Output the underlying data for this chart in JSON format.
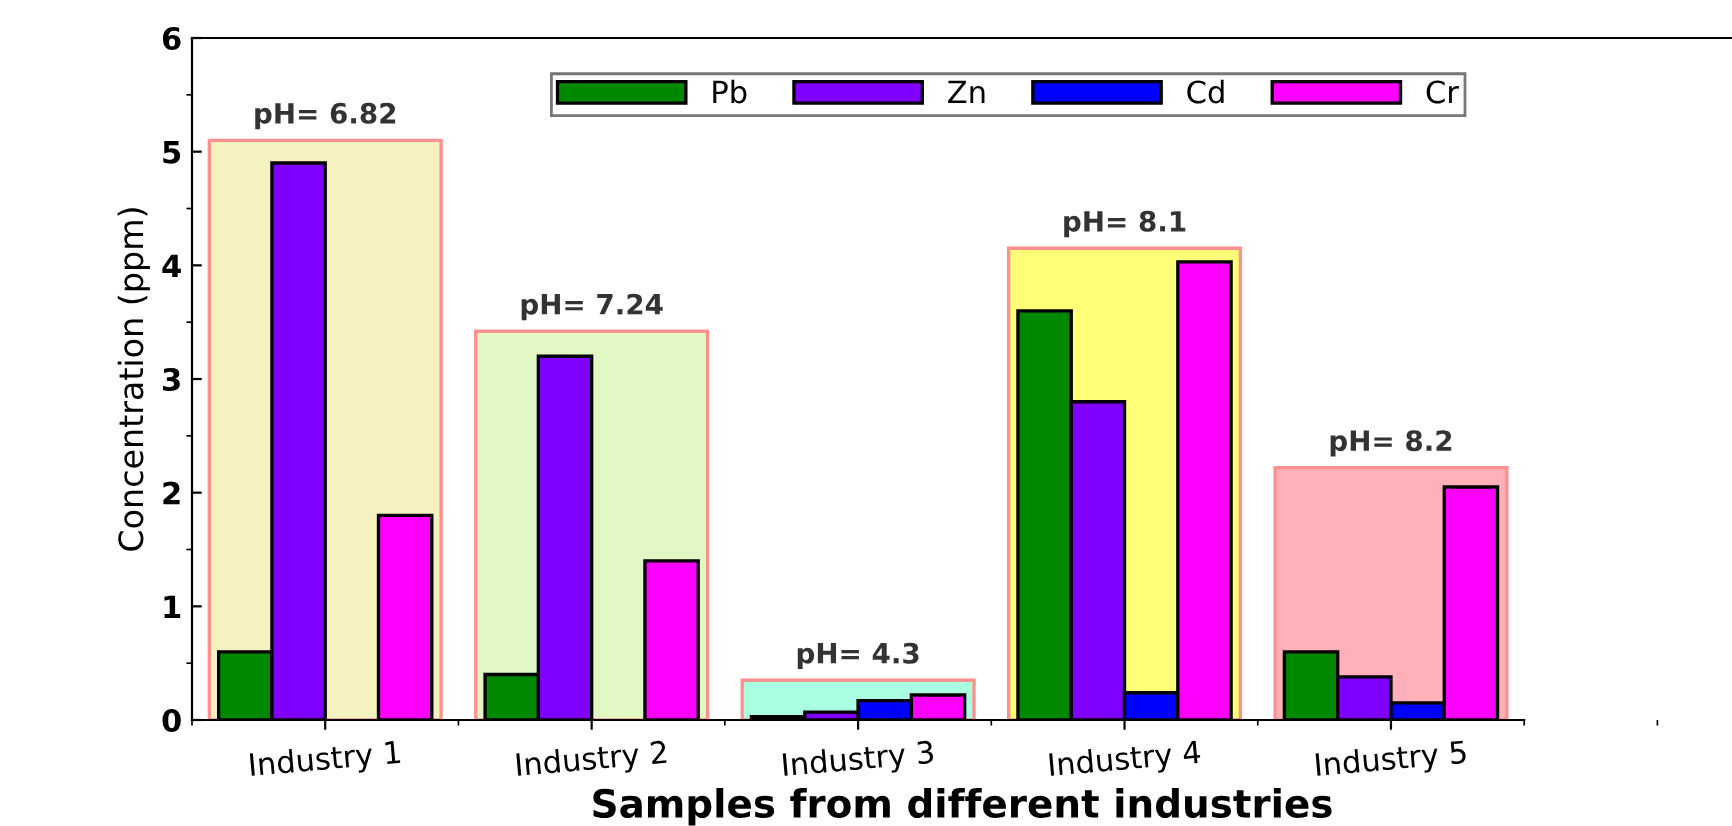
{
  "chart_data": {
    "type": "bar",
    "xlabel": "Samples from different industries",
    "ylabel": "Concentration (ppm)",
    "categories": [
      "Industry 1",
      "Industry 2",
      "Industry 3",
      "Industry 4",
      "Industry 5"
    ],
    "series": [
      {
        "type": "bar",
        "colors": [
          "#f5f2c0",
          "#e1f7c4",
          "#aaffe0",
          "#ffff78",
          "#ffb0b8"
        ],
        "values": [
          5.1,
          3.42,
          0.35,
          4.15,
          2.22
        ]
      },
      {
        "name": "Pb",
        "color": "#008800",
        "values": [
          0.6,
          0.4,
          0.03,
          3.6,
          0.6
        ]
      },
      {
        "name": "Zn",
        "color": "#8000ff",
        "values": [
          4.9,
          3.2,
          0.07,
          2.8,
          0.38
        ]
      },
      {
        "name": "Cd",
        "color": "#0000ff",
        "values": [
          null,
          null,
          0.17,
          0.24,
          0.15
        ]
      },
      {
        "name": "Cr",
        "color": "#ff00ff",
        "values": [
          1.8,
          1.4,
          0.22,
          4.03,
          2.05
        ]
      }
    ],
    "annotations": [
      {
        "text": "pH= 6.82",
        "x": "Industry 1",
        "y": 5.1
      },
      {
        "text": "pH= 7.24",
        "x": "Industry 2",
        "y": 3.42
      },
      {
        "text": "pH= 4.3",
        "x": "Industry 3",
        "y": 0.35
      },
      {
        "text": "pH= 8.1",
        "x": "Industry 4",
        "y": 4.15
      },
      {
        "text": "pH= 8.2",
        "x": "Industry 5",
        "y": 2.22
      }
    ],
    "ylim": [
      0,
      6
    ],
    "yticks": [
      0,
      1,
      2,
      3,
      4,
      5,
      6
    ],
    "legend": "top",
    "grid": false
  }
}
